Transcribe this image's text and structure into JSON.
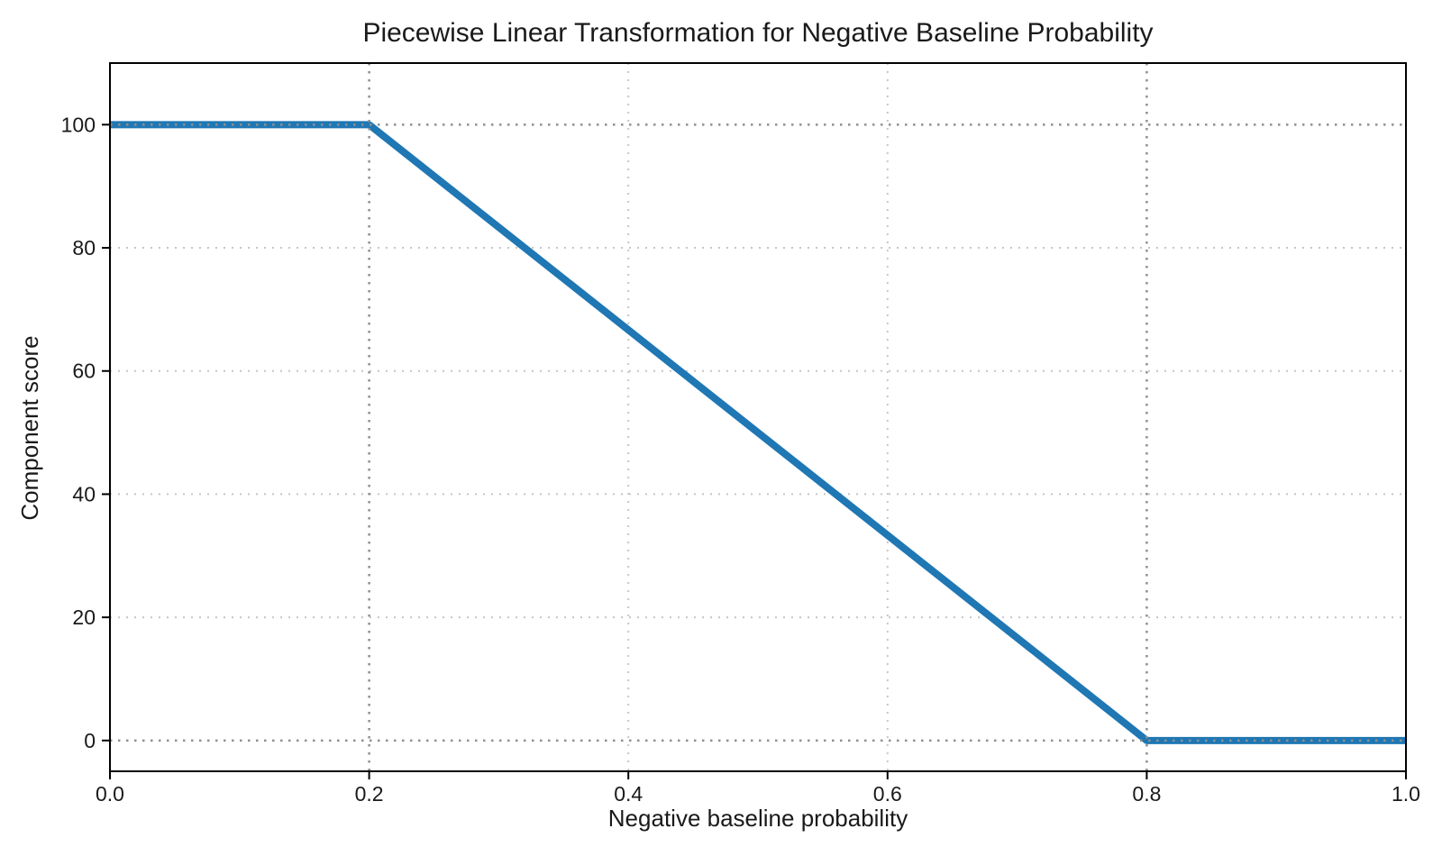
{
  "chart_data": {
    "type": "line",
    "title": "Piecewise Linear Transformation for Negative Baseline Probability",
    "xlabel": "Negative baseline probability",
    "ylabel": "Component score",
    "points": [
      [
        0.0,
        100
      ],
      [
        0.2,
        100
      ],
      [
        0.8,
        0
      ],
      [
        1.0,
        0
      ]
    ],
    "xlim": [
      0.0,
      1.0
    ],
    "ylim": [
      -5,
      110
    ],
    "xticks": {
      "values": [
        0.0,
        0.2,
        0.4,
        0.6,
        0.8,
        1.0
      ],
      "labels": [
        "0.0",
        "0.2",
        "0.4",
        "0.6",
        "0.8",
        "1.0"
      ]
    },
    "yticks": {
      "values": [
        0,
        20,
        40,
        60,
        80,
        100
      ],
      "labels": [
        "0",
        "20",
        "40",
        "60",
        "80",
        "100"
      ]
    },
    "grid": {
      "on": true,
      "style": "dotted"
    },
    "guide_lines": {
      "x": [
        0.2,
        0.8
      ],
      "y": [
        0,
        100
      ]
    },
    "legend": {
      "visible": false
    },
    "line_width": 8,
    "colors": {
      "line": "#1f77b4",
      "grid": "#c6c6c6",
      "guide": "#909090",
      "axis": "#000000",
      "text": "#1a1a1a"
    }
  }
}
